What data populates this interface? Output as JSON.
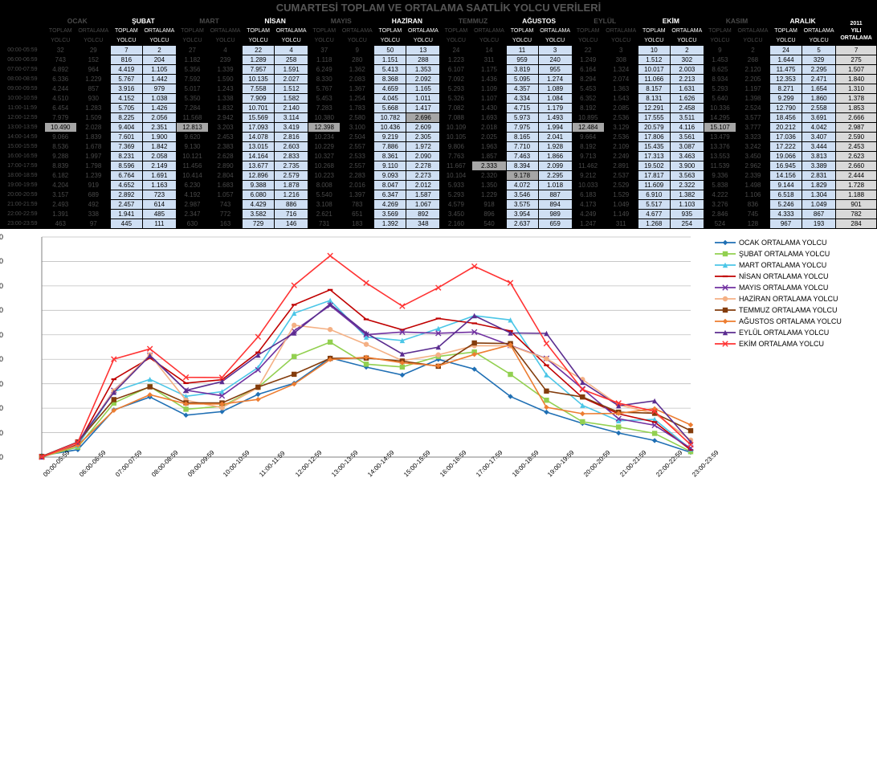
{
  "title": "CUMARTESİ TOPLAM VE ORTALAMA SAATLİK YOLCU VERİLERİ",
  "months": [
    "OCAK",
    "ŞUBAT",
    "MART",
    "NİSAN",
    "MAYIS",
    "HAZİRAN",
    "TEMMUZ",
    "AĞUSTOS",
    "EYLÜL",
    "EKİM",
    "KASIM",
    "ARALIK"
  ],
  "year_header": "2011 YILI ORTALAMA",
  "sub_top": "TOPLAM",
  "sub_bot": "YOLCU",
  "sub_top2": "ORTALAMA",
  "sub_bot2": "YOLCU",
  "light_cols": [
    1,
    3,
    5,
    7,
    9,
    11
  ],
  "times": [
    "00:00-05:59",
    "06:00-06:59",
    "07:00-07:59",
    "08:00-08:59",
    "09:00-09:59",
    "10:00-10:59",
    "11:00-11:59",
    "12:00-12:59",
    "13:00-13:59",
    "14:00-14:59",
    "15:00-15:59",
    "16:00-16:59",
    "17:00-17:59",
    "18:00-18:59",
    "19:00-19:59",
    "20:00-20:59",
    "21:00-21:59",
    "22:00-22:59",
    "23:00-23:59"
  ],
  "rows": [
    [
      [
        "32",
        "29"
      ],
      [
        "7",
        "2"
      ],
      [
        "27",
        "4"
      ],
      [
        "22",
        "4"
      ],
      [
        "37",
        "9"
      ],
      [
        "50",
        "13"
      ],
      [
        "24",
        "14"
      ],
      [
        "11",
        "3"
      ],
      [
        "22",
        "3"
      ],
      [
        "10",
        "2"
      ],
      [
        "9",
        "2"
      ],
      [
        "24",
        "5"
      ],
      "7"
    ],
    [
      [
        "743",
        "152"
      ],
      [
        "816",
        "204"
      ],
      [
        "1.182",
        "239"
      ],
      [
        "1.289",
        "258"
      ],
      [
        "1.118",
        "280"
      ],
      [
        "1.151",
        "288"
      ],
      [
        "1.223",
        "311"
      ],
      [
        "959",
        "240"
      ],
      [
        "1.249",
        "308"
      ],
      [
        "1.512",
        "302"
      ],
      [
        "1.453",
        "268"
      ],
      [
        "1.644",
        "329"
      ],
      "275"
    ],
    [
      [
        "4.892",
        "964"
      ],
      [
        "4.419",
        "1.105"
      ],
      [
        "5.356",
        "1.339"
      ],
      [
        "7.957",
        "1.591"
      ],
      [
        "6.249",
        "1.362"
      ],
      [
        "5.413",
        "1.353"
      ],
      [
        "6.107",
        "1.175"
      ],
      [
        "3.819",
        "955"
      ],
      [
        "6.164",
        "1.324"
      ],
      [
        "10.017",
        "2.003"
      ],
      [
        "8.625",
        "2.120"
      ],
      [
        "11.475",
        "2.295"
      ],
      "1.507"
    ],
    [
      [
        "6.336",
        "1.229"
      ],
      [
        "5.767",
        "1.442"
      ],
      [
        "7.592",
        "1.590"
      ],
      [
        "10.135",
        "2.027"
      ],
      [
        "8.330",
        "2.083"
      ],
      [
        "8.368",
        "2.092"
      ],
      [
        "7.092",
        "1.436"
      ],
      [
        "5.095",
        "1.274"
      ],
      [
        "8.294",
        "2.074"
      ],
      [
        "11.066",
        "2.213"
      ],
      [
        "8.934",
        "2.205"
      ],
      [
        "12.353",
        "2.471"
      ],
      "1.840"
    ],
    [
      [
        "4.244",
        "857"
      ],
      [
        "3.916",
        "979"
      ],
      [
        "5.017",
        "1.243"
      ],
      [
        "7.558",
        "1.512"
      ],
      [
        "5.767",
        "1.367"
      ],
      [
        "4.659",
        "1.165"
      ],
      [
        "5.293",
        "1.109"
      ],
      [
        "4.357",
        "1.089"
      ],
      [
        "5.453",
        "1.363"
      ],
      [
        "8.157",
        "1.631"
      ],
      [
        "5.293",
        "1.197"
      ],
      [
        "8.271",
        "1.654"
      ],
      "1.310"
    ],
    [
      [
        "4.510",
        "930"
      ],
      [
        "4.152",
        "1.038"
      ],
      [
        "5.350",
        "1.338"
      ],
      [
        "7.909",
        "1.582"
      ],
      [
        "5.453",
        "1.254"
      ],
      [
        "4.045",
        "1.011"
      ],
      [
        "5.326",
        "1.107"
      ],
      [
        "4.334",
        "1.084"
      ],
      [
        "6.352",
        "1.543"
      ],
      [
        "8.131",
        "1.626"
      ],
      [
        "5.640",
        "1.398"
      ],
      [
        "9.299",
        "1.860"
      ],
      "1.378"
    ],
    [
      [
        "6.454",
        "1.283"
      ],
      [
        "5.705",
        "1.426"
      ],
      [
        "7.284",
        "1.832"
      ],
      [
        "10.701",
        "2.140"
      ],
      [
        "7.283",
        "1.783"
      ],
      [
        "5.668",
        "1.417"
      ],
      [
        "7.082",
        "1.430"
      ],
      [
        "4.715",
        "1.179"
      ],
      [
        "8.192",
        "2.085"
      ],
      [
        "12.291",
        "2.458"
      ],
      [
        "10.336",
        "2.524"
      ],
      [
        "12.790",
        "2.558"
      ],
      "1.853"
    ],
    [
      [
        "7.979",
        "1.509"
      ],
      [
        "8.225",
        "2.056"
      ],
      [
        "11.568",
        "2.942"
      ],
      [
        "15.569",
        "3.114"
      ],
      [
        "10.380",
        "2.580"
      ],
      [
        "10.782",
        "2.696"
      ],
      [
        "7.088",
        "1.693"
      ],
      [
        "5.973",
        "1.493"
      ],
      [
        "10.895",
        "2.536"
      ],
      [
        "17.555",
        "3.511"
      ],
      [
        "14.295",
        "3.577"
      ],
      [
        "18.456",
        "3.691"
      ],
      "2.666"
    ],
    [
      [
        "10.490",
        "2.028"
      ],
      [
        "9.404",
        "2.351"
      ],
      [
        "12.813",
        "3.203"
      ],
      [
        "17.093",
        "3.419"
      ],
      [
        "12.398",
        "3.100"
      ],
      [
        "10.436",
        "2.609"
      ],
      [
        "10.109",
        "2.018"
      ],
      [
        "7.975",
        "1.994"
      ],
      [
        "12.484",
        "3.129"
      ],
      [
        "20.579",
        "4.116"
      ],
      [
        "15.107",
        "3.777"
      ],
      [
        "20.212",
        "4.042"
      ],
      "2.987"
    ],
    [
      [
        "9.066",
        "1.839"
      ],
      [
        "7.601",
        "1.900"
      ],
      [
        "9.620",
        "2.453"
      ],
      [
        "14.078",
        "2.816"
      ],
      [
        "10.234",
        "2.504"
      ],
      [
        "9.219",
        "2.305"
      ],
      [
        "10.105",
        "2.025"
      ],
      [
        "8.165",
        "2.041"
      ],
      [
        "9.664",
        "2.536"
      ],
      [
        "17.806",
        "3.561"
      ],
      [
        "13.479",
        "3.323"
      ],
      [
        "17.036",
        "3.407"
      ],
      "2.590"
    ],
    [
      [
        "8.536",
        "1.678"
      ],
      [
        "7.369",
        "1.842"
      ],
      [
        "9.130",
        "2.383"
      ],
      [
        "13.015",
        "2.603"
      ],
      [
        "10.229",
        "2.557"
      ],
      [
        "7.886",
        "1.972"
      ],
      [
        "9.806",
        "1.963"
      ],
      [
        "7.710",
        "1.928"
      ],
      [
        "8.192",
        "2.109"
      ],
      [
        "15.435",
        "3.087"
      ],
      [
        "13.376",
        "3.242"
      ],
      [
        "17.222",
        "3.444"
      ],
      "2.453"
    ],
    [
      [
        "9.288",
        "1.997"
      ],
      [
        "8.231",
        "2.058"
      ],
      [
        "10.121",
        "2.628"
      ],
      [
        "14.164",
        "2.833"
      ],
      [
        "10.327",
        "2.533"
      ],
      [
        "8.361",
        "2.090"
      ],
      [
        "7.763",
        "1.857"
      ],
      [
        "7.463",
        "1.866"
      ],
      [
        "9.713",
        "2.249"
      ],
      [
        "17.313",
        "3.463"
      ],
      [
        "13.553",
        "3.450"
      ],
      [
        "19.066",
        "3.813"
      ],
      "2.623"
    ],
    [
      [
        "8.839",
        "1.798"
      ],
      [
        "8.596",
        "2.149"
      ],
      [
        "11.456",
        "2.890"
      ],
      [
        "13.677",
        "2.735"
      ],
      [
        "10.268",
        "2.557"
      ],
      [
        "9.110",
        "2.278"
      ],
      [
        "11.667",
        "2.333"
      ],
      [
        "8.394",
        "2.099"
      ],
      [
        "11.462",
        "2.891"
      ],
      [
        "19.502",
        "3.900"
      ],
      [
        "11.539",
        "2.962"
      ],
      [
        "16.945",
        "3.389"
      ],
      "2.660"
    ],
    [
      [
        "6.182",
        "1.239"
      ],
      [
        "6.764",
        "1.691"
      ],
      [
        "10.414",
        "2.804"
      ],
      [
        "12.896",
        "2.579"
      ],
      [
        "10.223",
        "2.283"
      ],
      [
        "9.093",
        "2.273"
      ],
      [
        "10.104",
        "2.320"
      ],
      [
        "9.178",
        "2.295"
      ],
      [
        "9.212",
        "2.537"
      ],
      [
        "17.817",
        "3.563"
      ],
      [
        "9.336",
        "2.339"
      ],
      [
        "14.156",
        "2.831"
      ],
      "2.444"
    ],
    [
      [
        "4.204",
        "919"
      ],
      [
        "4.652",
        "1.163"
      ],
      [
        "6.230",
        "1.683"
      ],
      [
        "9.388",
        "1.878"
      ],
      [
        "8.008",
        "2.016"
      ],
      [
        "8.047",
        "2.012"
      ],
      [
        "5.933",
        "1.350"
      ],
      [
        "4.072",
        "1.018"
      ],
      [
        "10.033",
        "2.529"
      ],
      [
        "11.609",
        "2.322"
      ],
      [
        "5.838",
        "1.498"
      ],
      [
        "9.144",
        "1.829"
      ],
      "1.728"
    ],
    [
      [
        "3.157",
        "689"
      ],
      [
        "2.892",
        "723"
      ],
      [
        "4.192",
        "1.057"
      ],
      [
        "6.080",
        "1.216"
      ],
      [
        "5.540",
        "1.397"
      ],
      [
        "6.347",
        "1.587"
      ],
      [
        "5.293",
        "1.229"
      ],
      [
        "3.546",
        "887"
      ],
      [
        "6.183",
        "1.529"
      ],
      [
        "6.910",
        "1.382"
      ],
      [
        "4.222",
        "1.106"
      ],
      [
        "6.518",
        "1.304"
      ],
      "1.188"
    ],
    [
      [
        "2.493",
        "492"
      ],
      [
        "2.457",
        "614"
      ],
      [
        "2.987",
        "743"
      ],
      [
        "4.429",
        "886"
      ],
      [
        "3.108",
        "783"
      ],
      [
        "4.269",
        "1.067"
      ],
      [
        "4.579",
        "918"
      ],
      [
        "3.575",
        "894"
      ],
      [
        "4.173",
        "1.049"
      ],
      [
        "5.517",
        "1.103"
      ],
      [
        "3.276",
        "836"
      ],
      [
        "5.246",
        "1.049"
      ],
      "901"
    ],
    [
      [
        "1.391",
        "338"
      ],
      [
        "1.941",
        "485"
      ],
      [
        "2.347",
        "772"
      ],
      [
        "3.582",
        "716"
      ],
      [
        "2.621",
        "651"
      ],
      [
        "3.569",
        "892"
      ],
      [
        "3.450",
        "896"
      ],
      [
        "3.954",
        "989"
      ],
      [
        "4.249",
        "1.149"
      ],
      [
        "4.677",
        "935"
      ],
      [
        "2.846",
        "745"
      ],
      [
        "4.333",
        "867"
      ],
      "782"
    ],
    [
      [
        "463",
        "97"
      ],
      [
        "445",
        "111"
      ],
      [
        "630",
        "163"
      ],
      [
        "729",
        "146"
      ],
      [
        "731",
        "183"
      ],
      [
        "1.392",
        "348"
      ],
      [
        "2.160",
        "540"
      ],
      [
        "2.637",
        "659"
      ],
      [
        "1.247",
        "311"
      ],
      [
        "1.268",
        "254"
      ],
      [
        "524",
        "128"
      ],
      [
        "967",
        "193"
      ],
      "284"
    ]
  ],
  "peak_total": {
    "0": 8,
    "2": 8,
    "4": 8,
    "7": 13,
    "8": 8,
    "10": 8
  },
  "peak_avg": {
    "5": 7,
    "6": 12
  },
  "chart": {
    "y_max": 4500,
    "y_step": 500,
    "series": [
      {
        "name": "OCAK ORTALAMA YOLCU",
        "color": "#1f6fb4",
        "marker": "diamond"
      },
      {
        "name": "ŞUBAT ORTALAMA YOLCU",
        "color": "#92d050",
        "marker": "square"
      },
      {
        "name": "MART ORTALAMA YOLCU",
        "color": "#4bc6e7",
        "marker": "triangle"
      },
      {
        "name": "NİSAN ORTALAMA YOLCU",
        "color": "#c00000",
        "marker": "dash"
      },
      {
        "name": "MAYIS ORTALAMA YOLCU",
        "color": "#7030a0",
        "marker": "x"
      },
      {
        "name": "HAZİRAN ORTALAMA YOLCU",
        "color": "#f4b084",
        "marker": "circle"
      },
      {
        "name": "TEMMUZ ORTALAMA YOLCU",
        "color": "#833c0c",
        "marker": "square"
      },
      {
        "name": "AĞUSTOS ORTALAMA YOLCU",
        "color": "#ed7d31",
        "marker": "diamond"
      },
      {
        "name": "EYLÜL ORTALAMA YOLCU",
        "color": "#5b2d90",
        "marker": "triangle"
      },
      {
        "name": "EKİM ORTALAMA YOLCU",
        "color": "#ff3333",
        "marker": "x"
      }
    ]
  }
}
